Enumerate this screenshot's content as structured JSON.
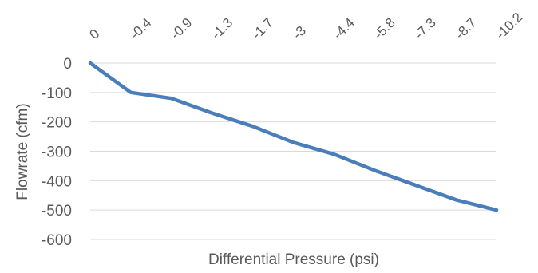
{
  "chart_data": {
    "type": "line",
    "x": [
      "0",
      "-0.4",
      "-0.9",
      "-1.3",
      "-1.7",
      "-3",
      "-4.4",
      "-5.8",
      "-7.3",
      "-8.7",
      "-10.2"
    ],
    "series": [
      {
        "values": [
          0,
          -100,
          -120,
          -170,
          -215,
          -270,
          -310,
          -365,
          -415,
          -465,
          -500
        ]
      }
    ],
    "xlabel": "Differential  Pressure (psi)",
    "ylabel": "Flowrate (cfm)",
    "ylim": [
      -600,
      0
    ],
    "yticks": [
      "0",
      "-100",
      "-200",
      "-300",
      "-400",
      "-500",
      "-600"
    ],
    "x_axis_position": "top",
    "x_tick_rotation": "-45deg",
    "grid": "horizontal",
    "line_color": "#4a7ebb",
    "grid_color": "#d9d9d9",
    "text_color": "#595959"
  }
}
